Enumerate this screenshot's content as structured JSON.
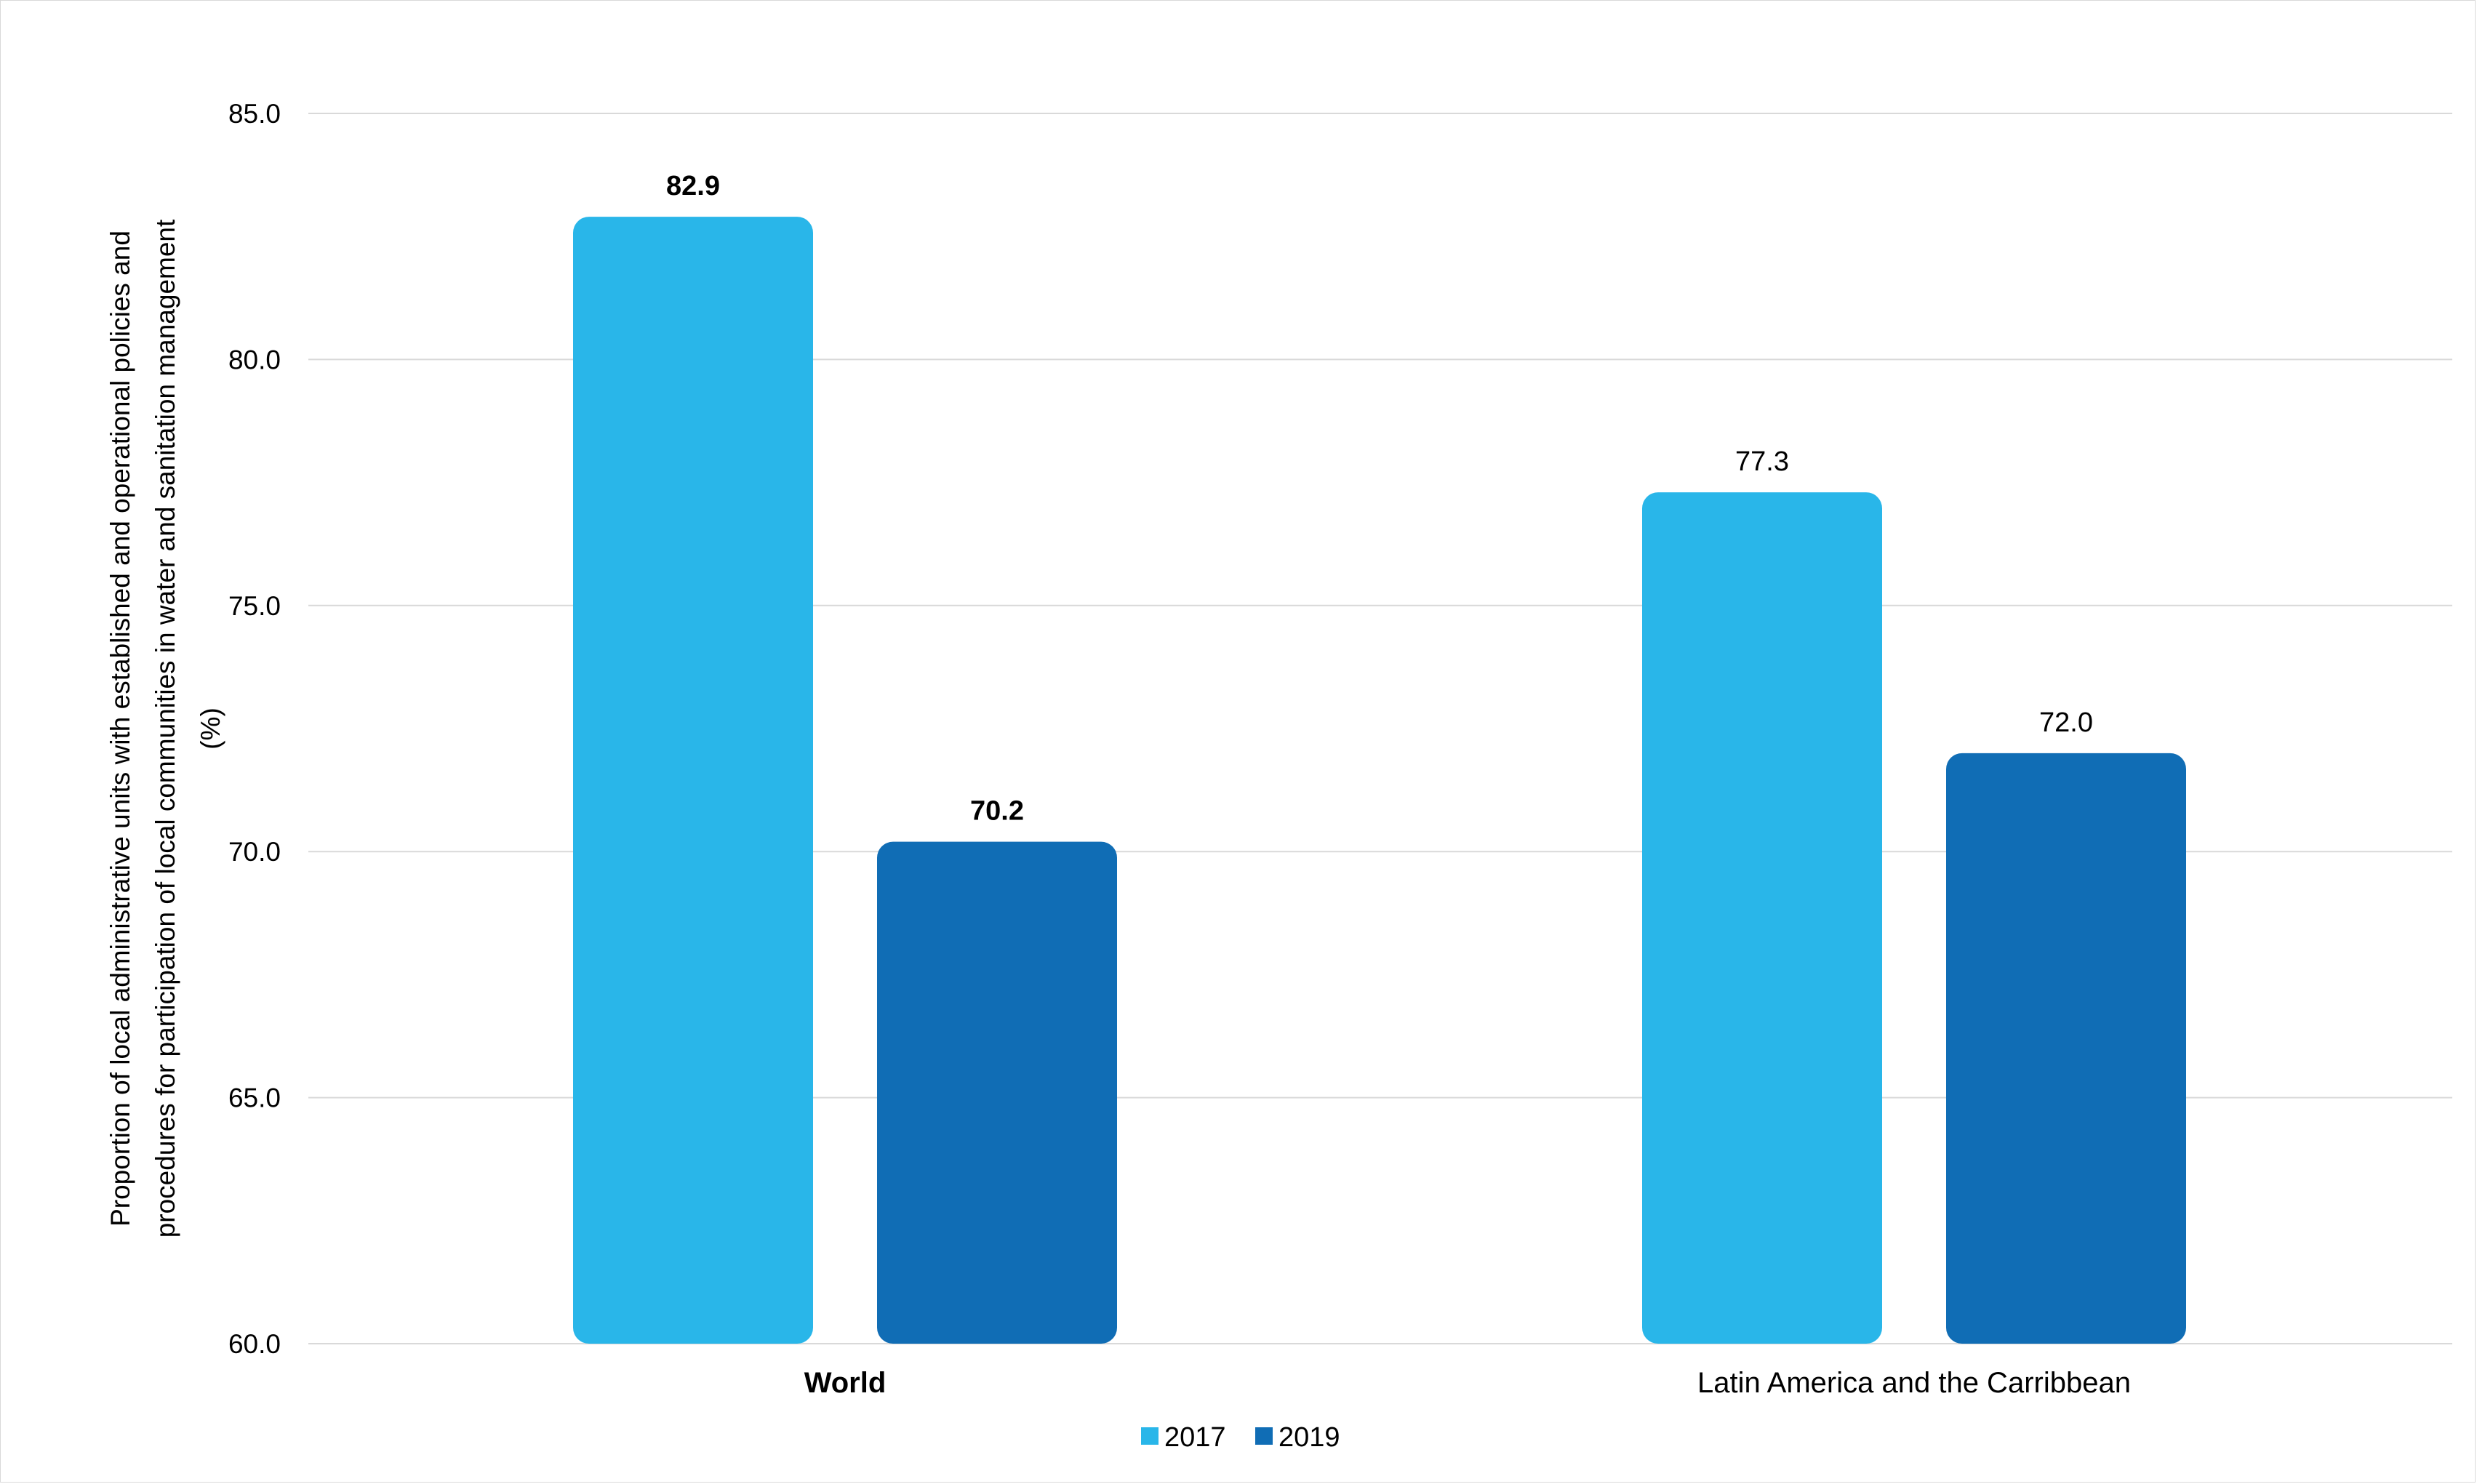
{
  "chart_data": {
    "type": "bar",
    "categories": [
      "World",
      "Latin America and the Carribbean"
    ],
    "category_bold": [
      true,
      false
    ],
    "series": [
      {
        "name": "2017",
        "values": [
          82.9,
          77.3
        ],
        "color": "#29b6e9"
      },
      {
        "name": "2019",
        "values": [
          70.2,
          72.0
        ],
        "color": "#106db5"
      }
    ],
    "data_labels": [
      [
        "82.9",
        "77.3"
      ],
      [
        "70.2",
        "72.0"
      ]
    ],
    "ylabel_lines": [
      "Proportion of local administrative units with established and operational policies and",
      "procedures for participation of local communities in water and sanitation management",
      "(%)"
    ],
    "yticks": [
      "60.0",
      "65.0",
      "70.0",
      "75.0",
      "80.0",
      "85.0"
    ],
    "ylim": [
      60,
      85
    ],
    "grid": true,
    "legend_position": "bottom-center",
    "colors": {
      "grid": "#d9d9d9",
      "border": "#d9d9d9"
    }
  }
}
